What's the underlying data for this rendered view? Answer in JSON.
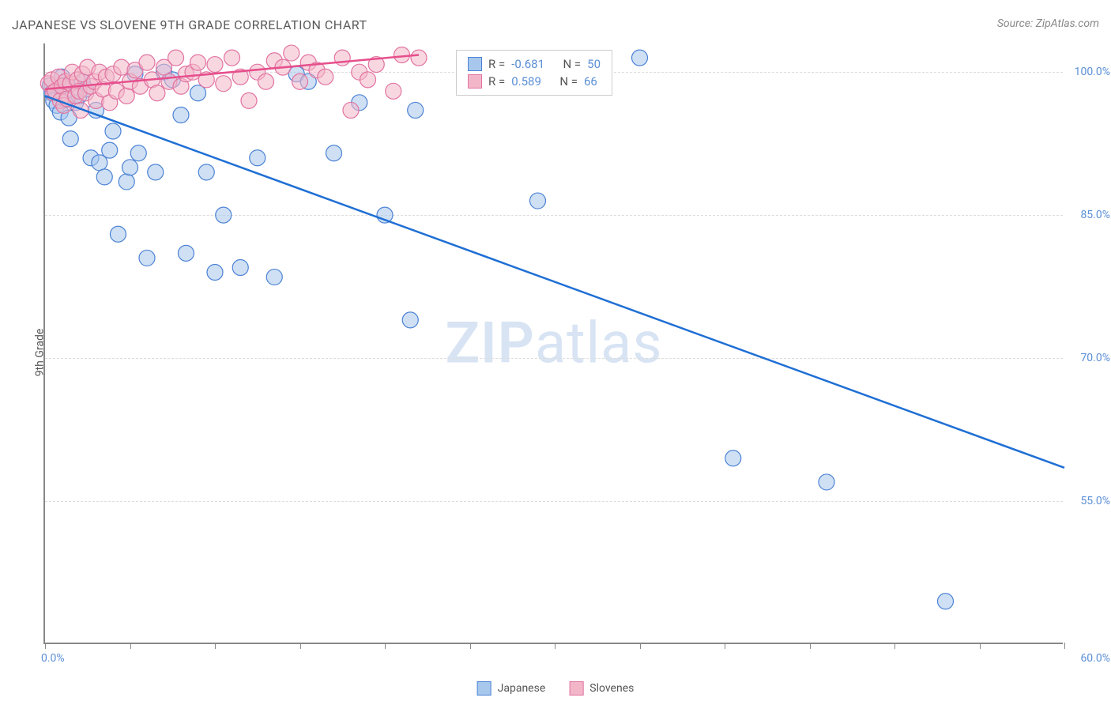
{
  "title": "JAPANESE VS SLOVENE 9TH GRADE CORRELATION CHART",
  "source": "Source: ZipAtlas.com",
  "watermark": {
    "part1": "ZIP",
    "part2": "atlas"
  },
  "yaxis_title": "9th Grade",
  "chart": {
    "type": "scatter",
    "xlim": [
      0,
      60
    ],
    "ylim": [
      40,
      103
    ],
    "background_color": "#ffffff",
    "grid_color": "#dddddd",
    "axis_color": "#888888",
    "tick_label_color": "#5b8fd6",
    "yticks": [
      {
        "v": 100,
        "label": "100.0%"
      },
      {
        "v": 85,
        "label": "85.0%"
      },
      {
        "v": 70,
        "label": "70.0%"
      },
      {
        "v": 55,
        "label": "55.0%"
      }
    ],
    "xtick_positions": [
      0,
      5,
      10,
      15,
      20,
      25,
      30,
      35,
      40,
      45,
      50,
      55,
      60
    ],
    "xlabel_min": "0.0%",
    "xlabel_max": "60.0%",
    "series": [
      {
        "name": "Japanese",
        "color_fill": "#a7c7ed",
        "color_stroke": "#4b82d4",
        "fill_opacity": 0.55,
        "marker_radius": 10,
        "trend": {
          "x1": 0,
          "y1": 97.5,
          "x2": 60,
          "y2": 58.5,
          "color": "#1f6fd4",
          "width": 2.5
        },
        "stats": {
          "R": "-0.681",
          "N": "50"
        },
        "points": [
          [
            0.3,
            98.6
          ],
          [
            0.4,
            97.8
          ],
          [
            0.5,
            97.0
          ],
          [
            0.7,
            96.5
          ],
          [
            0.9,
            95.8
          ],
          [
            1.0,
            99.5
          ],
          [
            1.1,
            98.6
          ],
          [
            1.2,
            97.1
          ],
          [
            1.4,
            95.2
          ],
          [
            1.5,
            93.0
          ],
          [
            1.8,
            96.8
          ],
          [
            2.0,
            97.5
          ],
          [
            2.2,
            99.0
          ],
          [
            2.4,
            98.2
          ],
          [
            2.7,
            91.0
          ],
          [
            3.0,
            96.0
          ],
          [
            3.2,
            90.5
          ],
          [
            3.5,
            89.0
          ],
          [
            3.8,
            91.8
          ],
          [
            4.0,
            93.8
          ],
          [
            4.3,
            83.0
          ],
          [
            4.8,
            88.5
          ],
          [
            5.0,
            90.0
          ],
          [
            5.3,
            99.8
          ],
          [
            5.5,
            91.5
          ],
          [
            6.0,
            80.5
          ],
          [
            6.5,
            89.5
          ],
          [
            7.0,
            100.0
          ],
          [
            7.5,
            99.2
          ],
          [
            8.0,
            95.5
          ],
          [
            8.3,
            81.0
          ],
          [
            9.0,
            97.8
          ],
          [
            9.5,
            89.5
          ],
          [
            10.0,
            79.0
          ],
          [
            10.5,
            85.0
          ],
          [
            11.5,
            79.5
          ],
          [
            12.5,
            91.0
          ],
          [
            13.5,
            78.5
          ],
          [
            14.8,
            99.8
          ],
          [
            15.5,
            99.0
          ],
          [
            17.0,
            91.5
          ],
          [
            18.5,
            96.8
          ],
          [
            20.0,
            85.0
          ],
          [
            21.5,
            74.0
          ],
          [
            21.8,
            96.0
          ],
          [
            29.0,
            86.5
          ],
          [
            35.0,
            101.5
          ],
          [
            40.5,
            59.5
          ],
          [
            46.0,
            57.0
          ],
          [
            53.0,
            44.5
          ]
        ]
      },
      {
        "name": "Slovenes",
        "color_fill": "#f3b6c9",
        "color_stroke": "#e273a0",
        "fill_opacity": 0.55,
        "marker_radius": 10,
        "trend": {
          "x1": 0,
          "y1": 98.2,
          "x2": 22,
          "y2": 101.8,
          "color": "#e64f8c",
          "width": 2.5
        },
        "stats": {
          "R": "0.589",
          "N": "66"
        },
        "points": [
          [
            0.2,
            98.8
          ],
          [
            0.4,
            99.2
          ],
          [
            0.5,
            97.8
          ],
          [
            0.6,
            98.0
          ],
          [
            0.8,
            99.5
          ],
          [
            0.9,
            97.0
          ],
          [
            1.0,
            98.5
          ],
          [
            1.1,
            96.5
          ],
          [
            1.2,
            99.0
          ],
          [
            1.3,
            97.2
          ],
          [
            1.5,
            98.8
          ],
          [
            1.6,
            100.0
          ],
          [
            1.8,
            97.5
          ],
          [
            1.9,
            99.2
          ],
          [
            2.0,
            98.0
          ],
          [
            2.1,
            96.0
          ],
          [
            2.2,
            99.8
          ],
          [
            2.4,
            97.8
          ],
          [
            2.5,
            100.5
          ],
          [
            2.7,
            98.5
          ],
          [
            2.9,
            99.0
          ],
          [
            3.0,
            97.0
          ],
          [
            3.2,
            100.0
          ],
          [
            3.4,
            98.2
          ],
          [
            3.6,
            99.5
          ],
          [
            3.8,
            96.8
          ],
          [
            4.0,
            99.8
          ],
          [
            4.2,
            98.0
          ],
          [
            4.5,
            100.5
          ],
          [
            4.8,
            97.5
          ],
          [
            5.0,
            99.0
          ],
          [
            5.3,
            100.2
          ],
          [
            5.6,
            98.5
          ],
          [
            6.0,
            101.0
          ],
          [
            6.3,
            99.2
          ],
          [
            6.6,
            97.8
          ],
          [
            7.0,
            100.5
          ],
          [
            7.3,
            99.0
          ],
          [
            7.7,
            101.5
          ],
          [
            8.0,
            98.5
          ],
          [
            8.3,
            99.8
          ],
          [
            8.7,
            100.0
          ],
          [
            9.0,
            101.0
          ],
          [
            9.5,
            99.2
          ],
          [
            10.0,
            100.8
          ],
          [
            10.5,
            98.8
          ],
          [
            11.0,
            101.5
          ],
          [
            11.5,
            99.5
          ],
          [
            12.0,
            97.0
          ],
          [
            12.5,
            100.0
          ],
          [
            13.0,
            99.0
          ],
          [
            13.5,
            101.2
          ],
          [
            14.0,
            100.5
          ],
          [
            14.5,
            102.0
          ],
          [
            15.0,
            99.0
          ],
          [
            15.5,
            101.0
          ],
          [
            16.0,
            100.2
          ],
          [
            16.5,
            99.5
          ],
          [
            17.5,
            101.5
          ],
          [
            18.0,
            96.0
          ],
          [
            18.5,
            100.0
          ],
          [
            19.0,
            99.2
          ],
          [
            19.5,
            100.8
          ],
          [
            20.5,
            98.0
          ],
          [
            21.0,
            101.8
          ],
          [
            22.0,
            101.5
          ]
        ]
      }
    ]
  },
  "stats_box": {
    "label_R": "R =",
    "label_N": "N ="
  },
  "legend_bottom": {
    "items": [
      {
        "label": "Japanese",
        "fill": "#a7c7ed",
        "stroke": "#4b82d4"
      },
      {
        "label": "Slovenes",
        "fill": "#f3b6c9",
        "stroke": "#e273a0"
      }
    ]
  }
}
